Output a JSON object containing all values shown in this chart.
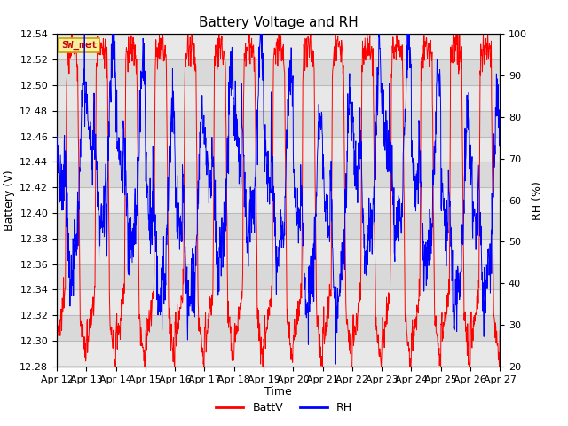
{
  "title": "Battery Voltage and RH",
  "xlabel": "Time",
  "ylabel_left": "Battery (V)",
  "ylabel_right": "RH (%)",
  "annotation": "SW_met",
  "ylim_left": [
    12.28,
    12.54
  ],
  "ylim_right": [
    20,
    100
  ],
  "yticks_left": [
    12.28,
    12.3,
    12.32,
    12.34,
    12.36,
    12.38,
    12.4,
    12.42,
    12.44,
    12.46,
    12.48,
    12.5,
    12.52,
    12.54
  ],
  "yticks_right": [
    20,
    30,
    40,
    50,
    60,
    70,
    80,
    90,
    100
  ],
  "x_tick_labels": [
    "Apr 12",
    "Apr 13",
    "Apr 14",
    "Apr 15",
    "Apr 16",
    "Apr 17",
    "Apr 18",
    "Apr 19",
    "Apr 20",
    "Apr 21",
    "Apr 22",
    "Apr 23",
    "Apr 24",
    "Apr 25",
    "Apr 26",
    "Apr 27"
  ],
  "legend_labels": [
    "BattV",
    "RH"
  ],
  "battv_color": "#ff0000",
  "rh_color": "#0000ff",
  "bg_color": "#ffffff",
  "plot_bg_color": "#e8e8e8",
  "grid_band_color": "#d0d0d0",
  "annotation_bg": "#f5f0a0",
  "annotation_border": "#c8a000",
  "title_fontsize": 11,
  "label_fontsize": 9,
  "tick_fontsize": 8,
  "legend_fontsize": 9
}
